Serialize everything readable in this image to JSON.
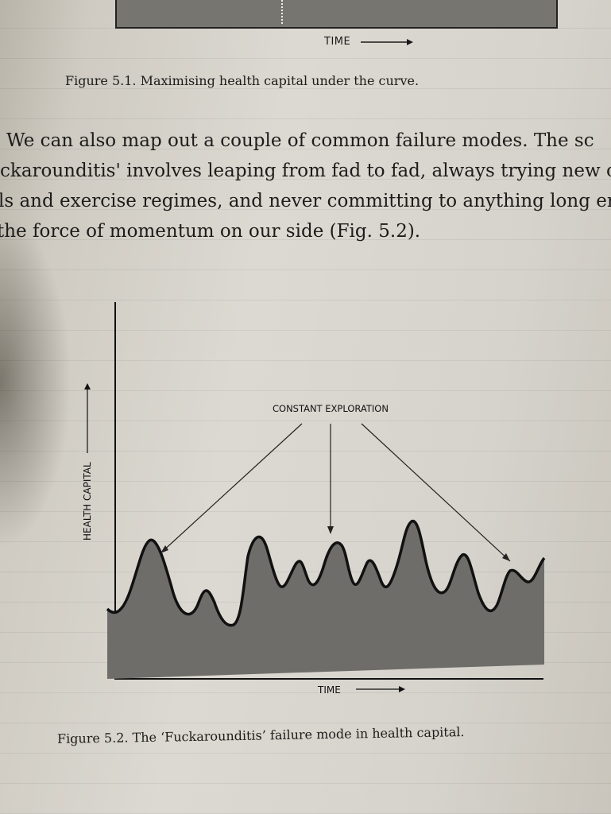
{
  "figure_5_1": {
    "xaxis_label": "TIME",
    "caption": "Figure 5.1. Maximising health capital under the curve."
  },
  "body_lines": [
    "We can also map out a couple of common failure modes. The sc",
    "ckarounditis' involves leaping from fad to fad, always trying new c",
    "ls and exercise regimes, and never committing to anything long er",
    "the force of momentum on our side (Fig. 5.2)."
  ],
  "figure_5_2": {
    "annotation": "CONSTANT EXPLORATION",
    "xaxis_label": "TIME",
    "yaxis_label": "HEALTH CAPITAL",
    "caption": "Figure 5.2. The ‘Fuckarounditis’ failure mode in health capital.",
    "area_color": "#6f6d69",
    "line_color": "#111111"
  }
}
